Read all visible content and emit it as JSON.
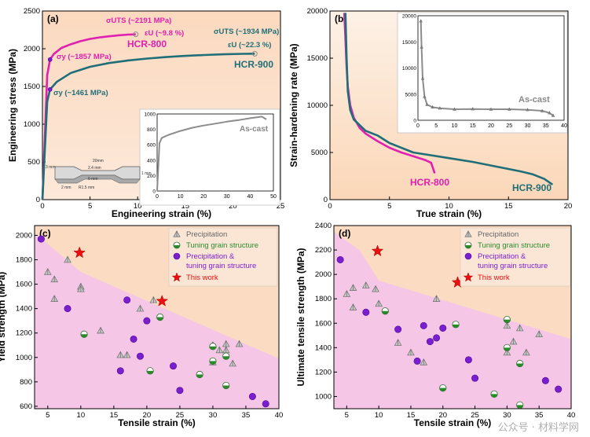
{
  "watermark": "公众号 · 材料学网",
  "colors": {
    "orange_bg": "#fbdcc2",
    "pink_bg": "#f6c6e6",
    "magenta": "#e020b0",
    "teal": "#1f6e78",
    "gray": "#8c8c8c",
    "green": "#2a8a2a",
    "purple": "#7a1fd0",
    "red": "#e81010"
  },
  "chart_data": [
    {
      "panel": "(a)",
      "type": "line",
      "xlabel": "Engineering strain (%)",
      "ylabel": "Engineering stress (MPa)",
      "xlim": [
        0,
        25
      ],
      "ylim": [
        0,
        2500
      ],
      "xticks": [
        0,
        5,
        10,
        15,
        20,
        25
      ],
      "yticks": [
        0,
        500,
        1000,
        1500,
        2000,
        2500
      ],
      "series": [
        {
          "name": "HCR-800",
          "color": "#e020b0",
          "x": [
            0,
            0.5,
            0.8,
            1.2,
            2,
            3,
            4,
            5,
            6,
            7,
            8,
            9,
            9.8
          ],
          "y": [
            0,
            1650,
            1857,
            1930,
            2010,
            2060,
            2100,
            2130,
            2150,
            2165,
            2178,
            2188,
            2191
          ]
        },
        {
          "name": "HCR-900",
          "color": "#1f6e78",
          "x": [
            0,
            0.5,
            0.8,
            1.5,
            3,
            5,
            7,
            9,
            11,
            13,
            15,
            17,
            19,
            21,
            22.3
          ],
          "y": [
            0,
            1300,
            1461,
            1560,
            1680,
            1760,
            1810,
            1845,
            1870,
            1890,
            1905,
            1917,
            1926,
            1932,
            1934
          ]
        }
      ],
      "annotations": {
        "uts_800": "σUTS (~2191 MPa)",
        "eu_800": "εU (~9.8 %)",
        "ys_800": "σy (~1857 MPa)",
        "name_800": "HCR-800",
        "uts_900": "σUTS (~1934 MPa)",
        "eu_900": "εU (~22.3 %)",
        "ys_900": "σy (~1461 MPa)",
        "name_900": "HCR-900"
      },
      "inset": {
        "label": "As-cast",
        "xlim": [
          0,
          50
        ],
        "ylim": [
          0,
          1000
        ],
        "xticks": [
          0,
          10,
          20,
          30,
          40,
          50
        ],
        "yticks": [
          0,
          200,
          400,
          600,
          800,
          1000
        ],
        "x": [
          0,
          1,
          2,
          5,
          10,
          15,
          20,
          25,
          30,
          35,
          40,
          45,
          47
        ],
        "y": [
          0,
          620,
          690,
          730,
          780,
          820,
          850,
          875,
          900,
          920,
          945,
          965,
          930
        ]
      },
      "specimen": {
        "dims": [
          "20mm",
          "2.4 mm",
          "1 mm",
          "3 mm",
          "6 mm",
          "R1.5 mm",
          "2 mm"
        ]
      }
    },
    {
      "panel": "(b)",
      "type": "line",
      "xlabel": "True strain (%)",
      "ylabel": "Strain-hardening rate (MPa)",
      "xlim": [
        0,
        20
      ],
      "ylim": [
        0,
        20000
      ],
      "xticks": [
        0,
        5,
        10,
        15,
        20
      ],
      "yticks": [
        0,
        5000,
        10000,
        15000,
        20000
      ],
      "series": [
        {
          "name": "HCR-800",
          "color": "#e020b0",
          "x": [
            1.2,
            1.3,
            1.4,
            1.5,
            1.7,
            2,
            2.5,
            3,
            4,
            5,
            6,
            7,
            8,
            8.5,
            8.8
          ],
          "y": [
            19800,
            17000,
            14000,
            12000,
            10000,
            8700,
            7600,
            7000,
            6200,
            5500,
            5000,
            4600,
            4200,
            3900,
            2800
          ]
        },
        {
          "name": "HCR-900",
          "color": "#1f6e78",
          "x": [
            1.3,
            1.4,
            1.5,
            1.7,
            2,
            3,
            4,
            5,
            6,
            7,
            8,
            10,
            12,
            14,
            16,
            17,
            18,
            18.7
          ],
          "y": [
            19800,
            15000,
            11500,
            9500,
            8500,
            7300,
            6800,
            6000,
            5500,
            5000,
            4800,
            4400,
            4000,
            3500,
            3000,
            2700,
            2200,
            1600
          ]
        }
      ],
      "labels": {
        "name_800": "HCR-800",
        "name_900": "HCR-900"
      },
      "inset": {
        "label": "As-cast",
        "xlim": [
          0,
          40
        ],
        "ylim": [
          0,
          20000
        ],
        "xticks": [
          0,
          5,
          10,
          15,
          20,
          25,
          30,
          35,
          40
        ],
        "yticks": [
          0,
          5000,
          10000,
          15000,
          20000
        ],
        "x": [
          0.8,
          1,
          1.3,
          1.8,
          2.5,
          4,
          6,
          10,
          15,
          20,
          25,
          30,
          34,
          36,
          37
        ],
        "y": [
          19000,
          14000,
          8000,
          4500,
          3000,
          2500,
          2300,
          2100,
          2150,
          2100,
          2100,
          2000,
          1800,
          1400,
          900
        ]
      }
    },
    {
      "panel": "(c)",
      "type": "scatter",
      "xlabel": "Tensile strain (%)",
      "ylabel": "Yield strength (MPa)",
      "xlim": [
        3,
        40
      ],
      "ylim": [
        580,
        2080
      ],
      "xticks": [
        5,
        10,
        15,
        20,
        25,
        30,
        35,
        40
      ],
      "yticks": [
        600,
        800,
        1000,
        1200,
        1400,
        1600,
        1800,
        2000
      ],
      "boundary": [
        [
          3,
          2020
        ],
        [
          10,
          1700
        ],
        [
          40,
          990
        ]
      ],
      "legend": [
        "Precipitation",
        "Tuning grain structure",
        "Precipitation &",
        "tuning grain structure",
        "This work"
      ],
      "series": [
        {
          "name": "Precipitation",
          "marker": "triangle",
          "points": [
            [
              5,
              1700
            ],
            [
              6,
              1640
            ],
            [
              6,
              1480
            ],
            [
              8,
              1800
            ],
            [
              10,
              1580
            ],
            [
              10,
              1560
            ],
            [
              13,
              1220
            ],
            [
              16,
              1020
            ],
            [
              17,
              1020
            ],
            [
              19,
              1400
            ],
            [
              21,
              1470
            ],
            [
              30,
              1100
            ],
            [
              30,
              960
            ],
            [
              32,
              1110
            ],
            [
              32,
              1060
            ],
            [
              33,
              950
            ],
            [
              34,
              1110
            ],
            [
              31,
              1060
            ]
          ]
        },
        {
          "name": "Tuning grain structure",
          "marker": "half",
          "points": [
            [
              10.5,
              1190
            ],
            [
              20.5,
              890
            ],
            [
              22,
              1330
            ],
            [
              28,
              860
            ],
            [
              30,
              1090
            ],
            [
              30,
              970
            ],
            [
              32,
              1010
            ],
            [
              32,
              770
            ]
          ]
        },
        {
          "name": "Precipitation & tuning grain structure",
          "marker": "circle",
          "points": [
            [
              4,
              1970
            ],
            [
              8,
              1400
            ],
            [
              16,
              890
            ],
            [
              17,
              1470
            ],
            [
              18,
              1150
            ],
            [
              19,
              1010
            ],
            [
              20,
              1300
            ],
            [
              24,
              930
            ],
            [
              25,
              730
            ],
            [
              36,
              680
            ],
            [
              38,
              620
            ]
          ]
        },
        {
          "name": "This work",
          "marker": "star",
          "points": [
            [
              9.8,
              1857
            ],
            [
              22.3,
              1461
            ]
          ]
        }
      ]
    },
    {
      "panel": "(d)",
      "type": "scatter",
      "xlabel": "Tensile strain (%)",
      "ylabel": "Ultimate tensile strength (MPa)",
      "xlim": [
        3,
        40
      ],
      "ylim": [
        900,
        2400
      ],
      "xticks": [
        5,
        10,
        15,
        20,
        25,
        30,
        35,
        40
      ],
      "yticks": [
        1000,
        1200,
        1400,
        1600,
        1800,
        2000,
        2200,
        2400
      ],
      "boundary": [
        [
          3,
          2350
        ],
        [
          7,
          2200
        ],
        [
          10,
          1950
        ],
        [
          40,
          1470
        ]
      ],
      "legend": [
        "Precipitation",
        "Tuning grain structure",
        "Precipitation &",
        "tuning grain structure",
        "This work"
      ],
      "series": [
        {
          "name": "Precipitation",
          "marker": "triangle",
          "points": [
            [
              5,
              1840
            ],
            [
              6,
              1890
            ],
            [
              6,
              1730
            ],
            [
              8,
              1910
            ],
            [
              9.5,
              1880
            ],
            [
              10,
              1760
            ],
            [
              13,
              1440
            ],
            [
              15,
              1360
            ],
            [
              17,
              1280
            ],
            [
              19,
              1800
            ],
            [
              30,
              1580
            ],
            [
              30,
              1360
            ],
            [
              32,
              1560
            ],
            [
              33,
              1360
            ],
            [
              35,
              1510
            ],
            [
              31,
              1450
            ]
          ]
        },
        {
          "name": "Tuning grain structure",
          "marker": "half",
          "points": [
            [
              11,
              1700
            ],
            [
              20,
              1070
            ],
            [
              22,
              1590
            ],
            [
              28,
              1020
            ],
            [
              30,
              1630
            ],
            [
              30,
              1400
            ],
            [
              32,
              1270
            ],
            [
              32,
              930
            ]
          ]
        },
        {
          "name": "Precipitation & tuning grain structure",
          "marker": "circle",
          "points": [
            [
              4,
              2120
            ],
            [
              8,
              1690
            ],
            [
              13,
              1550
            ],
            [
              16,
              1290
            ],
            [
              17,
              1580
            ],
            [
              18,
              1450
            ],
            [
              19,
              1480
            ],
            [
              20,
              1560
            ],
            [
              24,
              1300
            ],
            [
              25,
              1150
            ],
            [
              36,
              1130
            ],
            [
              38,
              1060
            ]
          ]
        },
        {
          "name": "This work",
          "marker": "star",
          "points": [
            [
              9.8,
              2191
            ],
            [
              22.3,
              1934
            ]
          ]
        }
      ]
    }
  ]
}
